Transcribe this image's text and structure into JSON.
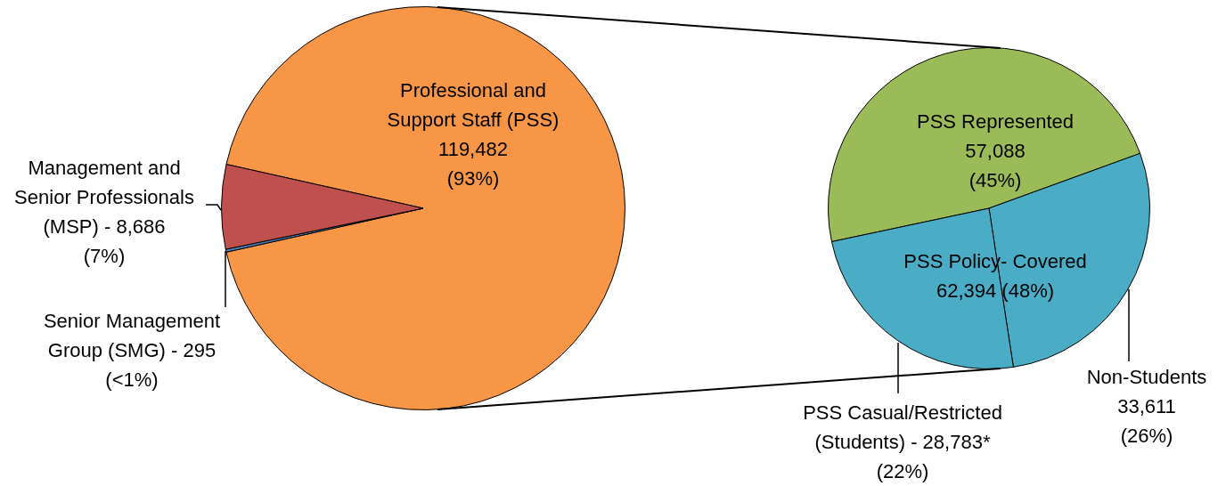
{
  "chart_data": [
    {
      "type": "pie",
      "categories": [
        "Professional and\nSupport Staff (PSS)\n119,482\n(93%)",
        "Senior Management\nGroup (SMG) - 295\n(<1%)",
        "Management and\nSenior Professionals\n(MSP) - 8,686\n(7%)"
      ],
      "values": [
        119482,
        295,
        8686
      ],
      "colors": [
        "#f79646",
        "#4f81bd",
        "#c0504d"
      ]
    },
    {
      "type": "pie",
      "categories": [
        "PSS Represented\n57,088\n(45%)",
        "Non-Students\n33,611\n(26%)",
        "PSS Casual/Restricted\n(Students) - 28,783*\n(22%)"
      ],
      "values": [
        57088,
        33611,
        28783
      ],
      "colors": [
        "#9bbb59",
        "#4bacc6",
        "#4bacc6"
      ],
      "annotations": [
        "PSS Policy- Covered\n62,394 (48%)"
      ]
    }
  ]
}
